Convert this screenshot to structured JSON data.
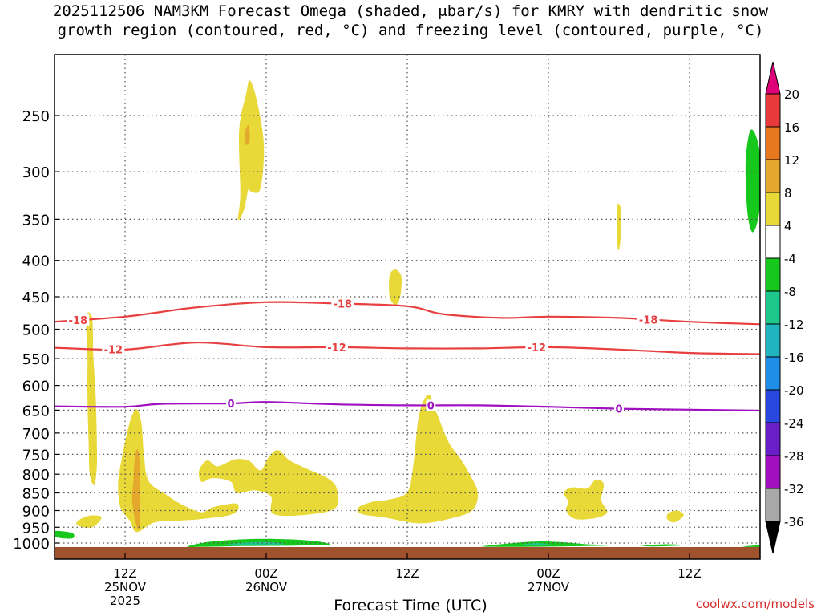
{
  "chart_data": {
    "type": "heatmap",
    "title_line1": "2025112506 NAM3KM Forecast Omega (shaded, μbar/s) for KMRY with dendritic snow",
    "title_line2": "growth region (contoured, red, °C) and freezing level (contoured, purple, °C)",
    "xlabel": "Forecast Time (UTC)",
    "watermark": "coolwx.com/models",
    "y_scale": "log-pressure",
    "y_ticks": [
      250,
      300,
      350,
      400,
      450,
      500,
      550,
      600,
      650,
      700,
      750,
      800,
      850,
      900,
      950,
      1000
    ],
    "x_ticks": [
      {
        "label": "12Z",
        "day": "25NOV",
        "year": "2025",
        "hour": 6
      },
      {
        "label": "00Z",
        "day": "26NOV",
        "year": "",
        "hour": 18
      },
      {
        "label": "12Z",
        "day": "",
        "year": "",
        "hour": 30
      },
      {
        "label": "00Z",
        "day": "27NOV",
        "year": "",
        "hour": 42
      },
      {
        "label": "12Z",
        "day": "",
        "year": "",
        "hour": 54
      }
    ],
    "colorbar": {
      "labels": [
        "20",
        "16",
        "12",
        "8",
        "4",
        "-4",
        "-8",
        "-12",
        "-16",
        "-20",
        "-24",
        "-28",
        "-32",
        "-36"
      ],
      "colors": [
        "#e0007a",
        "#e83a3a",
        "#e8781e",
        "#e4a82c",
        "#e8d838",
        "#ffffff",
        "#16c81c",
        "#1ec88c",
        "#20b4c0",
        "#1e8ee8",
        "#2848e0",
        "#6a1ec8",
        "#a010c0",
        "#a8a8a8",
        "#000000"
      ]
    },
    "contours": [
      {
        "level": "-18",
        "color": "#e84040",
        "points": [
          [
            0,
            488
          ],
          [
            6,
            480
          ],
          [
            12,
            466
          ],
          [
            18,
            458
          ],
          [
            24,
            460
          ],
          [
            30,
            464
          ],
          [
            33,
            476
          ],
          [
            38,
            482
          ],
          [
            42,
            480
          ],
          [
            48,
            482
          ],
          [
            54,
            488
          ],
          [
            60,
            492
          ]
        ],
        "label_hours": [
          2,
          24.5,
          50.5
        ]
      },
      {
        "level": "-12",
        "color": "#e84040",
        "points": [
          [
            0,
            531
          ],
          [
            6,
            534
          ],
          [
            12,
            522
          ],
          [
            18,
            530
          ],
          [
            24,
            530
          ],
          [
            30,
            532
          ],
          [
            36,
            532
          ],
          [
            42,
            530
          ],
          [
            48,
            534
          ],
          [
            54,
            540
          ],
          [
            60,
            542
          ]
        ],
        "label_hours": [
          5,
          24,
          41
        ]
      },
      {
        "level": "0",
        "color": "#a010c0",
        "points": [
          [
            0,
            642
          ],
          [
            6,
            643
          ],
          [
            9,
            637
          ],
          [
            15,
            636
          ],
          [
            18,
            633
          ],
          [
            24,
            638
          ],
          [
            30,
            640
          ],
          [
            36,
            640
          ],
          [
            42,
            643
          ],
          [
            48,
            647
          ],
          [
            54,
            649
          ],
          [
            60,
            651
          ]
        ],
        "label_hours": [
          15,
          32,
          48
        ]
      }
    ],
    "regions": [
      {
        "value": "4 to 8",
        "color": "#e8d838",
        "points": [
          [
            15.7,
            262
          ],
          [
            16.3,
            233
          ],
          [
            16.6,
            223
          ],
          [
            17.2,
            238
          ],
          [
            17.8,
            275
          ],
          [
            17.5,
            317
          ],
          [
            16.7,
            320
          ],
          [
            16.5,
            317
          ],
          [
            16.1,
            340
          ],
          [
            15.6,
            350
          ],
          [
            15.8,
            322
          ]
        ]
      },
      {
        "value": "8 to 12",
        "color": "#e4a82c",
        "points": [
          [
            16.2,
            264
          ],
          [
            16.5,
            258
          ],
          [
            16.6,
            270
          ],
          [
            16.3,
            275
          ]
        ]
      },
      {
        "value": "4 to 8",
        "color": "#e8d838",
        "points": [
          [
            28.5,
            420
          ],
          [
            29,
            412
          ],
          [
            29.5,
            422
          ],
          [
            29.4,
            450
          ],
          [
            29,
            462
          ],
          [
            28.5,
            450
          ]
        ]
      },
      {
        "value": "4 to 8",
        "color": "#e8d838",
        "points": [
          [
            47.8,
            340
          ],
          [
            48,
            333
          ],
          [
            48.2,
            344
          ],
          [
            48.1,
            378
          ],
          [
            47.9,
            384
          ]
        ]
      },
      {
        "value": "-4 to -8",
        "color": "#16c81c",
        "points": [
          [
            58.8,
            285
          ],
          [
            59.2,
            262
          ],
          [
            59.8,
            272
          ],
          [
            60.2,
            305
          ],
          [
            59.9,
            345
          ],
          [
            59.4,
            365
          ],
          [
            59,
            350
          ],
          [
            58.8,
            318
          ]
        ]
      },
      {
        "value": "4 to 8",
        "color": "#e8d838",
        "points": [
          [
            2.7,
            480
          ],
          [
            3.2,
            482
          ],
          [
            3.3,
            545
          ],
          [
            3.5,
            620
          ],
          [
            3.6,
            720
          ],
          [
            3.6,
            780
          ],
          [
            3.4,
            828
          ],
          [
            3.0,
            800
          ],
          [
            2.9,
            720
          ],
          [
            2.8,
            620
          ],
          [
            2.8,
            545
          ]
        ]
      },
      {
        "value": "4 to 8",
        "color": "#e8d838",
        "points": [
          [
            6,
            720
          ],
          [
            6.5,
            668
          ],
          [
            7,
            648
          ],
          [
            7.4,
            680
          ],
          [
            7.6,
            750
          ],
          [
            8,
            818
          ],
          [
            9.5,
            855
          ],
          [
            10.8,
            882
          ],
          [
            12.5,
            905
          ],
          [
            13.5,
            890
          ],
          [
            15.5,
            880
          ],
          [
            15.2,
            910
          ],
          [
            12.5,
            925
          ],
          [
            10.5,
            930
          ],
          [
            8.5,
            935
          ],
          [
            7,
            965
          ],
          [
            6.4,
            930
          ],
          [
            5.6,
            890
          ],
          [
            5.4,
            830
          ],
          [
            5.6,
            780
          ]
        ]
      },
      {
        "value": "8 to 12",
        "color": "#e4a82c",
        "points": [
          [
            6.8,
            770
          ],
          [
            7,
            738
          ],
          [
            7.2,
            760
          ],
          [
            7.3,
            870
          ],
          [
            7.2,
            955
          ],
          [
            6.9,
            935
          ],
          [
            6.6,
            870
          ],
          [
            6.7,
            820
          ]
        ]
      },
      {
        "value": "4 to 8",
        "color": "#e8d838",
        "points": [
          [
            2.0,
            930
          ],
          [
            3.0,
            915
          ],
          [
            4.0,
            920
          ],
          [
            3.2,
            950
          ],
          [
            2.0,
            945
          ]
        ]
      },
      {
        "value": "4 to 8",
        "color": "#e8d838",
        "points": [
          [
            12.3,
            790
          ],
          [
            13,
            765
          ],
          [
            13.8,
            780
          ],
          [
            14.7,
            770
          ],
          [
            15.4,
            762
          ],
          [
            16.5,
            765
          ],
          [
            17.5,
            790
          ],
          [
            18.2,
            758
          ],
          [
            19,
            740
          ],
          [
            20,
            765
          ],
          [
            21.6,
            788
          ],
          [
            23.2,
            810
          ],
          [
            24,
            838
          ],
          [
            23.9,
            892
          ],
          [
            21.5,
            912
          ],
          [
            18.6,
            910
          ],
          [
            18.4,
            860
          ],
          [
            17,
            843
          ],
          [
            15.5,
            850
          ],
          [
            15,
            820
          ],
          [
            13.5,
            810
          ],
          [
            12.5,
            820
          ]
        ]
      },
      {
        "value": "4 to 8",
        "color": "#e8d838",
        "points": [
          [
            25.8,
            892
          ],
          [
            27,
            875
          ],
          [
            28.5,
            868
          ],
          [
            30,
            848
          ],
          [
            30.5,
            780
          ],
          [
            31,
            660
          ],
          [
            31.8,
            618
          ],
          [
            32.4,
            650
          ],
          [
            33.5,
            720
          ],
          [
            34.5,
            760
          ],
          [
            35.3,
            800
          ],
          [
            36,
            850
          ],
          [
            35.5,
            900
          ],
          [
            33.5,
            925
          ],
          [
            31,
            938
          ],
          [
            28,
            920
          ],
          [
            26.1,
            910
          ]
        ]
      },
      {
        "value": "4 to 8",
        "color": "#e8d838",
        "points": [
          [
            43.3,
            850
          ],
          [
            44,
            835
          ],
          [
            45.3,
            838
          ],
          [
            46,
            815
          ],
          [
            46.7,
            825
          ],
          [
            46.5,
            870
          ],
          [
            47,
            905
          ],
          [
            46,
            922
          ],
          [
            44.3,
            925
          ],
          [
            43.5,
            900
          ],
          [
            43.7,
            875
          ]
        ]
      },
      {
        "value": "4 to 8",
        "color": "#e8d838",
        "points": [
          [
            52.2,
            908
          ],
          [
            53,
            900
          ],
          [
            53.5,
            915
          ],
          [
            52.7,
            935
          ],
          [
            52.1,
            925
          ]
        ]
      },
      {
        "value": "-4 to -8",
        "color": "#16c81c",
        "points": [
          [
            0,
            962
          ],
          [
            1.5,
            968
          ],
          [
            1.5,
            985
          ],
          [
            0,
            980
          ]
        ]
      },
      {
        "value": "-4 to -8",
        "color": "#16c81c",
        "points": [
          [
            11.3,
            1012
          ],
          [
            13,
            997
          ],
          [
            16,
            988
          ],
          [
            19,
            987
          ],
          [
            22,
            993
          ],
          [
            23.4,
            1005
          ],
          [
            21,
            1008
          ],
          [
            16,
            1010
          ],
          [
            13,
            1012
          ]
        ]
      },
      {
        "value": "-8 to -12",
        "color": "#1ec88c",
        "points": [
          [
            14.5,
            1005
          ],
          [
            16,
            999
          ],
          [
            18,
            997
          ],
          [
            19.5,
            1003
          ],
          [
            17,
            1008
          ],
          [
            15,
            1008
          ]
        ]
      },
      {
        "value": "-4 to -8",
        "color": "#16c81c",
        "points": [
          [
            36.5,
            1010
          ],
          [
            39,
            1000
          ],
          [
            41,
            995
          ],
          [
            43,
            997
          ],
          [
            45,
            1003
          ],
          [
            47,
            1008
          ],
          [
            41,
            1012
          ],
          [
            37,
            1012
          ]
        ]
      },
      {
        "value": "-8 to -12",
        "color": "#1ec88c",
        "points": [
          [
            39.8,
            1005
          ],
          [
            41,
            1000
          ],
          [
            42.2,
            1005
          ],
          [
            41,
            1009
          ]
        ]
      },
      {
        "value": "-4 to -8",
        "color": "#16c81c",
        "points": [
          [
            50,
            1008
          ],
          [
            52,
            1004
          ],
          [
            53.6,
            1007
          ],
          [
            51,
            1011
          ]
        ]
      },
      {
        "value": "-4 to -8",
        "color": "#16c81c",
        "points": [
          [
            58.5,
            1012
          ],
          [
            59.5,
            1008
          ],
          [
            60,
            1008
          ],
          [
            60,
            1013
          ]
        ]
      }
    ]
  }
}
